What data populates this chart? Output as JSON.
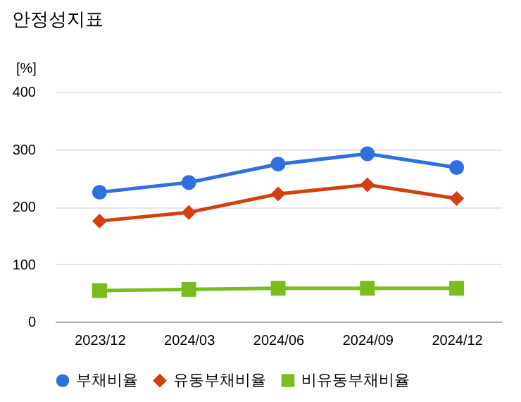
{
  "chart_data": {
    "type": "line",
    "title": "안정성지표",
    "ylabel": "[%]",
    "categories": [
      "2023/12",
      "2024/03",
      "2024/06",
      "2024/09",
      "2024/12"
    ],
    "series": [
      {
        "name": "부채비율",
        "color": "#2f6fde",
        "marker": "circle",
        "values": [
          225,
          242,
          274,
          292,
          268
        ]
      },
      {
        "name": "유동부채비율",
        "color": "#d2400f",
        "marker": "diamond",
        "values": [
          175,
          190,
          222,
          238,
          214
        ]
      },
      {
        "name": "비유동부채비율",
        "color": "#7cbb1c",
        "marker": "square",
        "values": [
          54,
          56,
          58,
          58,
          58
        ]
      }
    ],
    "ylim": [
      0,
      400
    ],
    "yticks": [
      0,
      100,
      200,
      300,
      400
    ],
    "grid": "y",
    "legend": "bottom",
    "line_style": "solid"
  }
}
